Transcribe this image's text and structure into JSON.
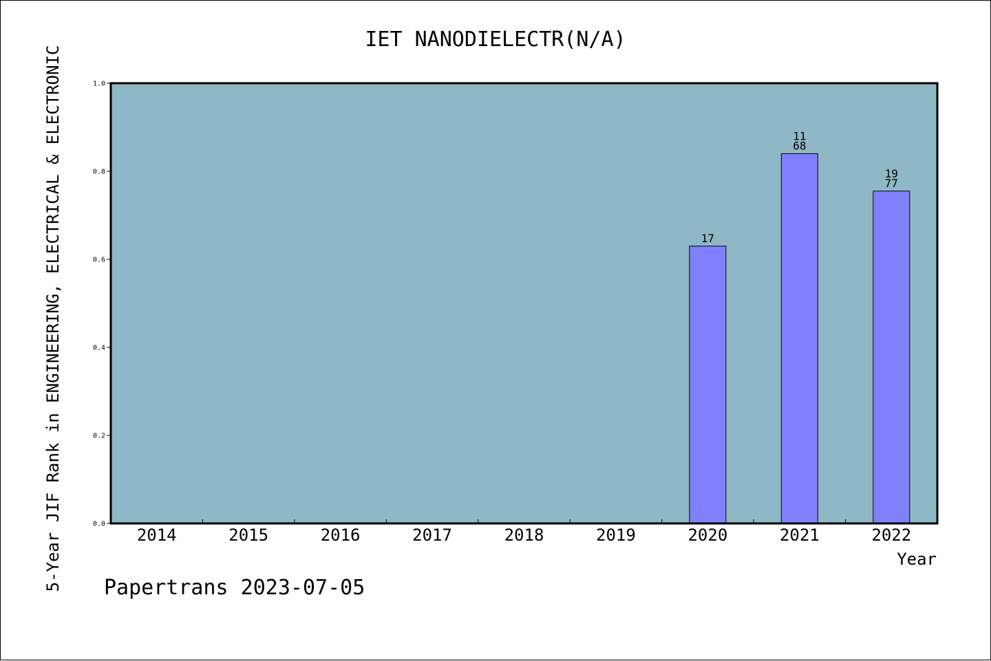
{
  "chart_data": {
    "type": "bar",
    "title": "IET NANODIELECTR(N/A)",
    "xlabel": "Year",
    "ylabel": "5-Year JIF Rank in ENGINEERING, ELECTRICAL & ELECTRONIC",
    "categories": [
      "2014",
      "2015",
      "2016",
      "2017",
      "2018",
      "2019",
      "2020",
      "2021",
      "2022"
    ],
    "values": [
      null,
      null,
      null,
      null,
      null,
      null,
      0.63,
      0.84,
      0.755
    ],
    "bar_labels": [
      [],
      [],
      [],
      [],
      [],
      [],
      [
        "17"
      ],
      [
        "11",
        "68"
      ],
      [
        "19",
        "77"
      ]
    ],
    "ylim": [
      0,
      1.0
    ],
    "yticks": [
      "0.0",
      "0.2",
      "0.4",
      "0.6",
      "0.8",
      "1.0"
    ],
    "grid": false,
    "colors": {
      "plot_background": "#8fb8c6",
      "bar_fill": "#8080ff",
      "bar_stroke": "#000000",
      "axis": "#000000"
    }
  },
  "footer": {
    "text": "Papertrans 2023-07-05"
  }
}
